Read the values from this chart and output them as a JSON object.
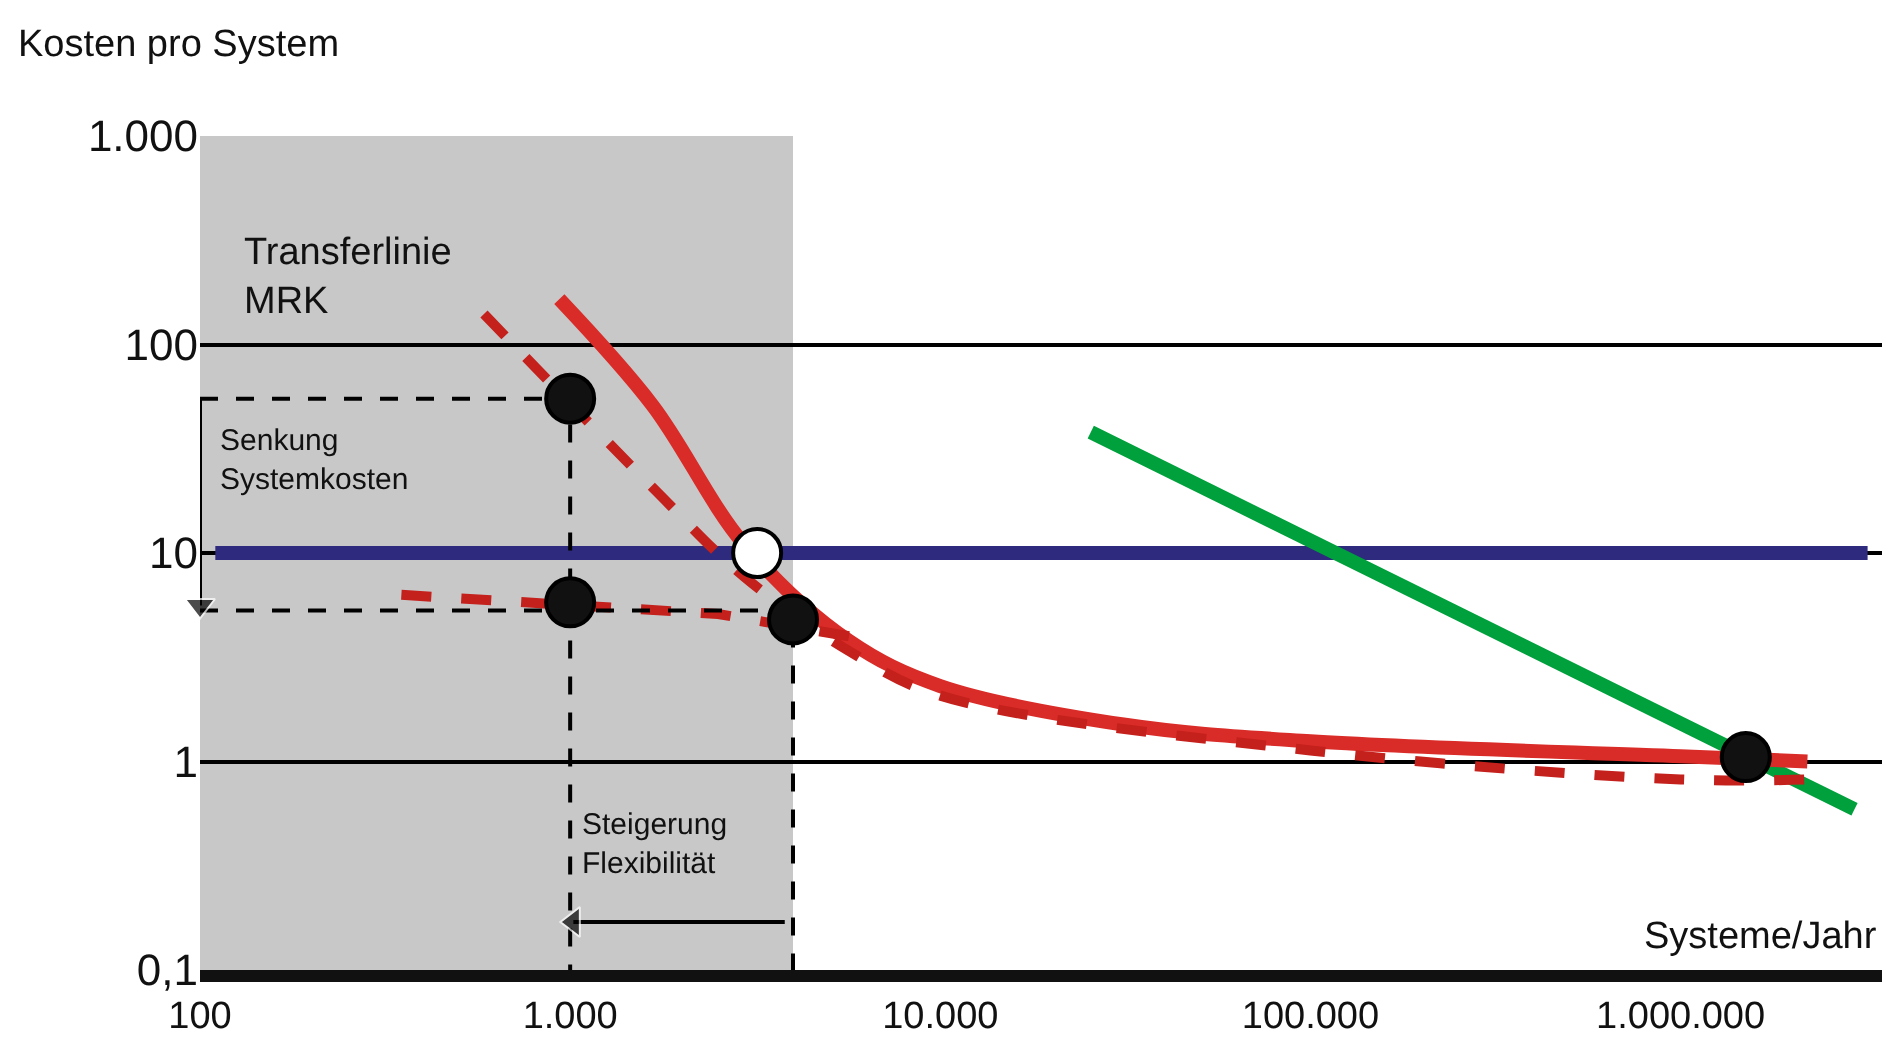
{
  "chart_data": {
    "type": "line",
    "xlabel": "Systeme/Jahr",
    "ylabel": "Kosten pro System",
    "log": "xy",
    "xlim": [
      100,
      3500000
    ],
    "ylim": [
      0.1,
      1000
    ],
    "xticks": [
      {
        "value": 100,
        "label": "100"
      },
      {
        "value": 1000,
        "label": "1.000"
      },
      {
        "value": 10000,
        "label": "10.000"
      },
      {
        "value": 100000,
        "label": "100.000"
      },
      {
        "value": 1000000,
        "label": "1.000.000"
      }
    ],
    "yticks": [
      {
        "value": 0.1,
        "label": "0,1"
      },
      {
        "value": 1,
        "label": "1"
      },
      {
        "value": 10,
        "label": "10"
      },
      {
        "value": 100,
        "label": "100"
      },
      {
        "value": 1000,
        "label": "1.000"
      }
    ],
    "grid": "y",
    "bands": [
      {
        "axis": "x",
        "from": 100,
        "to": 4000,
        "color": "#c8c8c8"
      }
    ],
    "series": [
      {
        "color": "#2e2a7e",
        "line_style": "solid",
        "marker": "none",
        "x": [
          110,
          3200000
        ],
        "values": [
          10,
          10
        ]
      },
      {
        "color": "#00a03c",
        "line_style": "solid",
        "marker": "none",
        "x": [
          25500,
          2950000
        ],
        "values": [
          38,
          0.59
        ]
      },
      {
        "color": "#d92b27",
        "line_style": "solid",
        "marker": "none",
        "x": [
          935,
          1670,
          2950,
          5650,
          10000,
          31600,
          100000,
          1000000,
          2200000
        ],
        "values": [
          165,
          51,
          11,
          3.8,
          2.3,
          1.5,
          1.25,
          1.06,
          1.0
        ]
      },
      {
        "color": "#c4201c",
        "line_style": "dashed",
        "marker": "none",
        "x": [
          585,
          1670,
          2950,
          5650,
          10000,
          100000,
          1000000,
          2200000
        ],
        "values": [
          140,
          20.6,
          7.7,
          3.4,
          2.07,
          1.13,
          0.82,
          0.82
        ]
      },
      {
        "color": "#c4201c",
        "line_style": "dashed",
        "marker": "none",
        "x": [
          350,
          2510,
          6650
        ],
        "values": [
          6.3,
          5.1,
          3.8
        ]
      },
      {
        "color": "#000000",
        "line_style": "dashed",
        "marker": "none",
        "x": [
          100,
          1000,
          1000
        ],
        "values": [
          55,
          55,
          0.1
        ]
      },
      {
        "color": "#000000",
        "line_style": "dashed",
        "marker": "none",
        "x": [
          100,
          4000,
          4000
        ],
        "values": [
          5.3,
          5.3,
          0.1
        ]
      },
      {
        "color": "#000000",
        "line_style": "solid",
        "marker": "triangle",
        "x": [
          100,
          100
        ],
        "values": [
          55,
          5.6
        ]
      },
      {
        "color": "#000000",
        "line_style": "solid",
        "marker": "triangle",
        "x": [
          3800,
          1020
        ],
        "values": [
          0.17,
          0.17
        ]
      },
      {
        "type": "scatter",
        "color": "#111111",
        "marker": "circle",
        "x": [
          1000,
          1000,
          4000,
          1500000
        ],
        "values": [
          55,
          5.8,
          4.8,
          1.05
        ]
      },
      {
        "type": "scatter",
        "color": "#ffffff",
        "marker": "circle",
        "x": [
          3200
        ],
        "values": [
          10
        ]
      }
    ],
    "annotations": [
      "Transferlinie\nMRK",
      "Senkung\nSystemkosten",
      "Steigerung\nFlexibilität"
    ]
  }
}
